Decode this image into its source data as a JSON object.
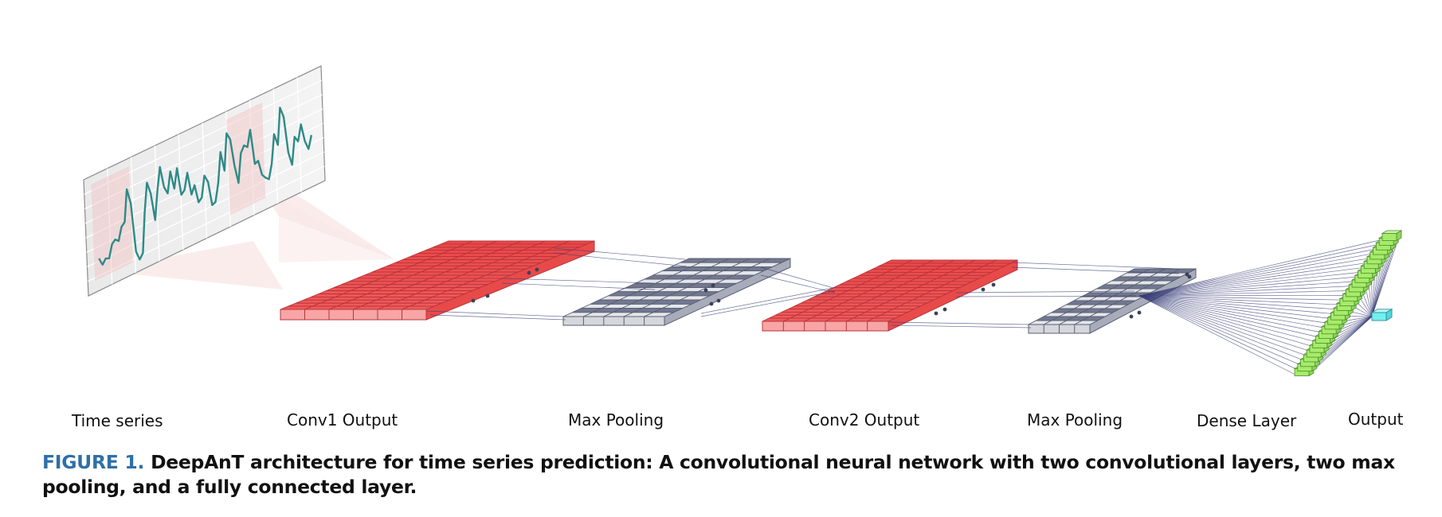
{
  "colors": {
    "conv": "#ee5555",
    "conv_light": "#f7a5a5",
    "pool_dark": "#707790",
    "pool_light": "#e6e7ea",
    "dense": "#a6ec6a",
    "output": "#74eeee",
    "line": "#3a3f78",
    "series": "#2e8a86",
    "caption_number": "#2f6fa7"
  },
  "labels": {
    "time_series": "Time series",
    "conv1": "Conv1 Output",
    "pool1": "Max Pooling",
    "conv2": "Conv2 Output",
    "pool2": "Max Pooling",
    "dense": "Dense Layer",
    "output": "Output"
  },
  "caption": {
    "number": "FIGURE 1.",
    "text": "DeepAnT architecture for time series prediction: A convolutional neural network with two convolutional layers, two max pooling, and a fully connected layer."
  }
}
